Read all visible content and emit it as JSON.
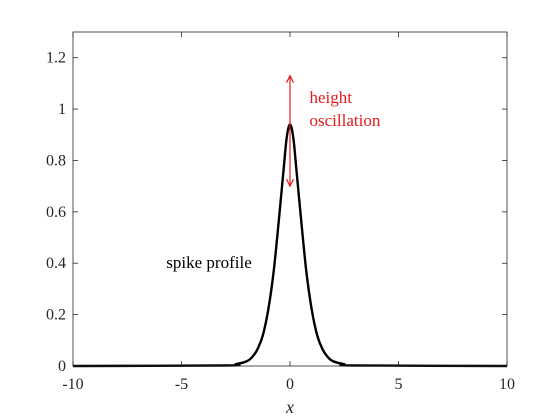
{
  "chart_data": {
    "type": "line",
    "title": "",
    "xlabel": "x",
    "ylabel": "",
    "xlim": [
      -10,
      10
    ],
    "ylim": [
      0,
      1.3
    ],
    "grid": false,
    "box": true,
    "xticks": [
      -10,
      -5,
      0,
      5,
      10
    ],
    "xtick_labels": [
      "-10",
      "-5",
      "0",
      "5",
      "10"
    ],
    "yticks": [
      0,
      0.2,
      0.4,
      0.6,
      0.8,
      1,
      1.2
    ],
    "ytick_labels": [
      "0",
      "0.2",
      "0.4",
      "0.6",
      "0.8",
      "1",
      "1.2"
    ],
    "series": [
      {
        "color": "#000000",
        "x": [
          -10,
          -3,
          -2.5,
          -2,
          -1.75,
          -1.5,
          -1.25,
          -1,
          -0.75,
          -0.5,
          -0.3,
          -0.15,
          0,
          0.15,
          0.3,
          0.5,
          0.75,
          1,
          1.25,
          1.5,
          1.75,
          2,
          2.5,
          3,
          10
        ],
        "y": [
          0,
          0.002,
          0.007,
          0.018,
          0.034,
          0.065,
          0.12,
          0.22,
          0.37,
          0.58,
          0.76,
          0.89,
          0.94,
          0.89,
          0.76,
          0.58,
          0.37,
          0.22,
          0.12,
          0.065,
          0.034,
          0.018,
          0.007,
          0.002,
          0
        ]
      }
    ],
    "annotations": [
      {
        "text": "spike profile",
        "x": -5.7,
        "y": 0.4,
        "color": "#000000"
      },
      {
        "type": "double-arrow",
        "x": 0,
        "y_from": 1.13,
        "y_to": 0.7,
        "color": "#e41a1c"
      },
      {
        "lines": [
          "height",
          "oscillation"
        ],
        "x": 0.9,
        "y": 1.0,
        "color": "#e41a1c"
      }
    ]
  }
}
